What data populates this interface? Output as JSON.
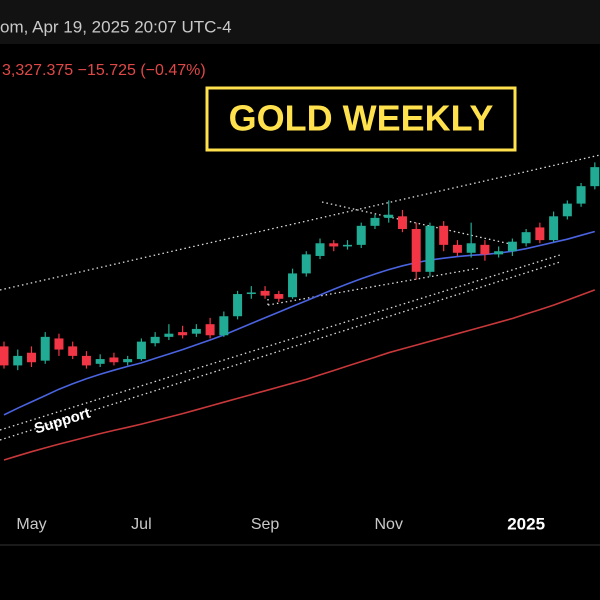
{
  "chart_data": {
    "type": "candlestick",
    "header": "om, Apr 19, 2025 20:07 UTC-4",
    "price_label": "3,327.375  −15.725 (−0.47%)",
    "annotations": [
      "GOLD WEEKLY",
      "Support"
    ],
    "categories": [
      null,
      null,
      "May",
      null,
      null,
      null,
      null,
      null,
      null,
      null,
      "Jul",
      null,
      null,
      null,
      null,
      null,
      null,
      null,
      null,
      "Sep",
      null,
      null,
      null,
      null,
      null,
      null,
      null,
      null,
      "Nov",
      null,
      null,
      null,
      null,
      null,
      null,
      null,
      null,
      null,
      "2025",
      null,
      null,
      null,
      null,
      null
    ],
    "open": [
      2330,
      2270,
      2310,
      2285,
      2355,
      2330,
      2300,
      2275,
      2295,
      2280,
      2290,
      2340,
      2360,
      2375,
      2370,
      2400,
      2365,
      2425,
      2495,
      2505,
      2495,
      2485,
      2560,
      2615,
      2655,
      2645,
      2650,
      2710,
      2735,
      2740,
      2700,
      2565,
      2710,
      2650,
      2625,
      2650,
      2620,
      2630,
      2655,
      2705,
      2665,
      2740,
      2780,
      2835
    ],
    "high": [
      2345,
      2320,
      2330,
      2375,
      2370,
      2345,
      2315,
      2305,
      2310,
      2300,
      2355,
      2375,
      2400,
      2395,
      2400,
      2420,
      2440,
      2505,
      2520,
      2520,
      2505,
      2575,
      2630,
      2670,
      2665,
      2665,
      2720,
      2745,
      2790,
      2760,
      2720,
      2720,
      2725,
      2665,
      2720,
      2665,
      2645,
      2670,
      2700,
      2720,
      2755,
      2790,
      2845,
      2910
    ],
    "low": [
      2260,
      2255,
      2265,
      2275,
      2300,
      2290,
      2260,
      2265,
      2270,
      2270,
      2285,
      2330,
      2350,
      2355,
      2360,
      2355,
      2360,
      2415,
      2480,
      2480,
      2470,
      2480,
      2550,
      2605,
      2630,
      2635,
      2640,
      2700,
      2720,
      2690,
      2540,
      2550,
      2630,
      2615,
      2610,
      2600,
      2610,
      2615,
      2645,
      2655,
      2660,
      2730,
      2770,
      2825
    ],
    "close": [
      2270,
      2300,
      2280,
      2360,
      2320,
      2300,
      2270,
      2290,
      2280,
      2290,
      2345,
      2360,
      2370,
      2365,
      2385,
      2365,
      2425,
      2495,
      2500,
      2490,
      2480,
      2560,
      2620,
      2655,
      2645,
      2650,
      2710,
      2735,
      2745,
      2700,
      2565,
      2710,
      2650,
      2625,
      2655,
      2620,
      2630,
      2660,
      2690,
      2665,
      2740,
      2780,
      2835,
      2895
    ],
    "up_color": "#22ab94",
    "down_color": "#f23645",
    "lines": [
      {
        "color": "#4a63e0",
        "values": [
          2114,
          2135,
          2155,
          2175,
          2195,
          2212,
          2228,
          2242,
          2255,
          2267,
          2278,
          2292,
          2306,
          2320,
          2335,
          2350,
          2366,
          2384,
          2402,
          2420,
          2438,
          2456,
          2474,
          2492,
          2510,
          2527,
          2543,
          2558,
          2572,
          2584,
          2594,
          2602,
          2608,
          2613,
          2617,
          2620,
          2624,
          2630,
          2638,
          2648,
          2658,
          2668,
          2680,
          2692
        ]
      },
      {
        "color": "#c8383a",
        "values": [
          1972,
          1985,
          1998,
          2010,
          2022,
          2033,
          2044,
          2055,
          2065,
          2075,
          2085,
          2096,
          2107,
          2118,
          2130,
          2142,
          2154,
          2166,
          2178,
          2190,
          2202,
          2214,
          2226,
          2240,
          2254,
          2268,
          2282,
          2296,
          2310,
          2322,
          2334,
          2346,
          2358,
          2370,
          2382,
          2394,
          2406,
          2418,
          2432,
          2446,
          2460,
          2476,
          2492,
          2508
        ]
      }
    ],
    "ylim": [
      1830,
      3280
    ]
  }
}
